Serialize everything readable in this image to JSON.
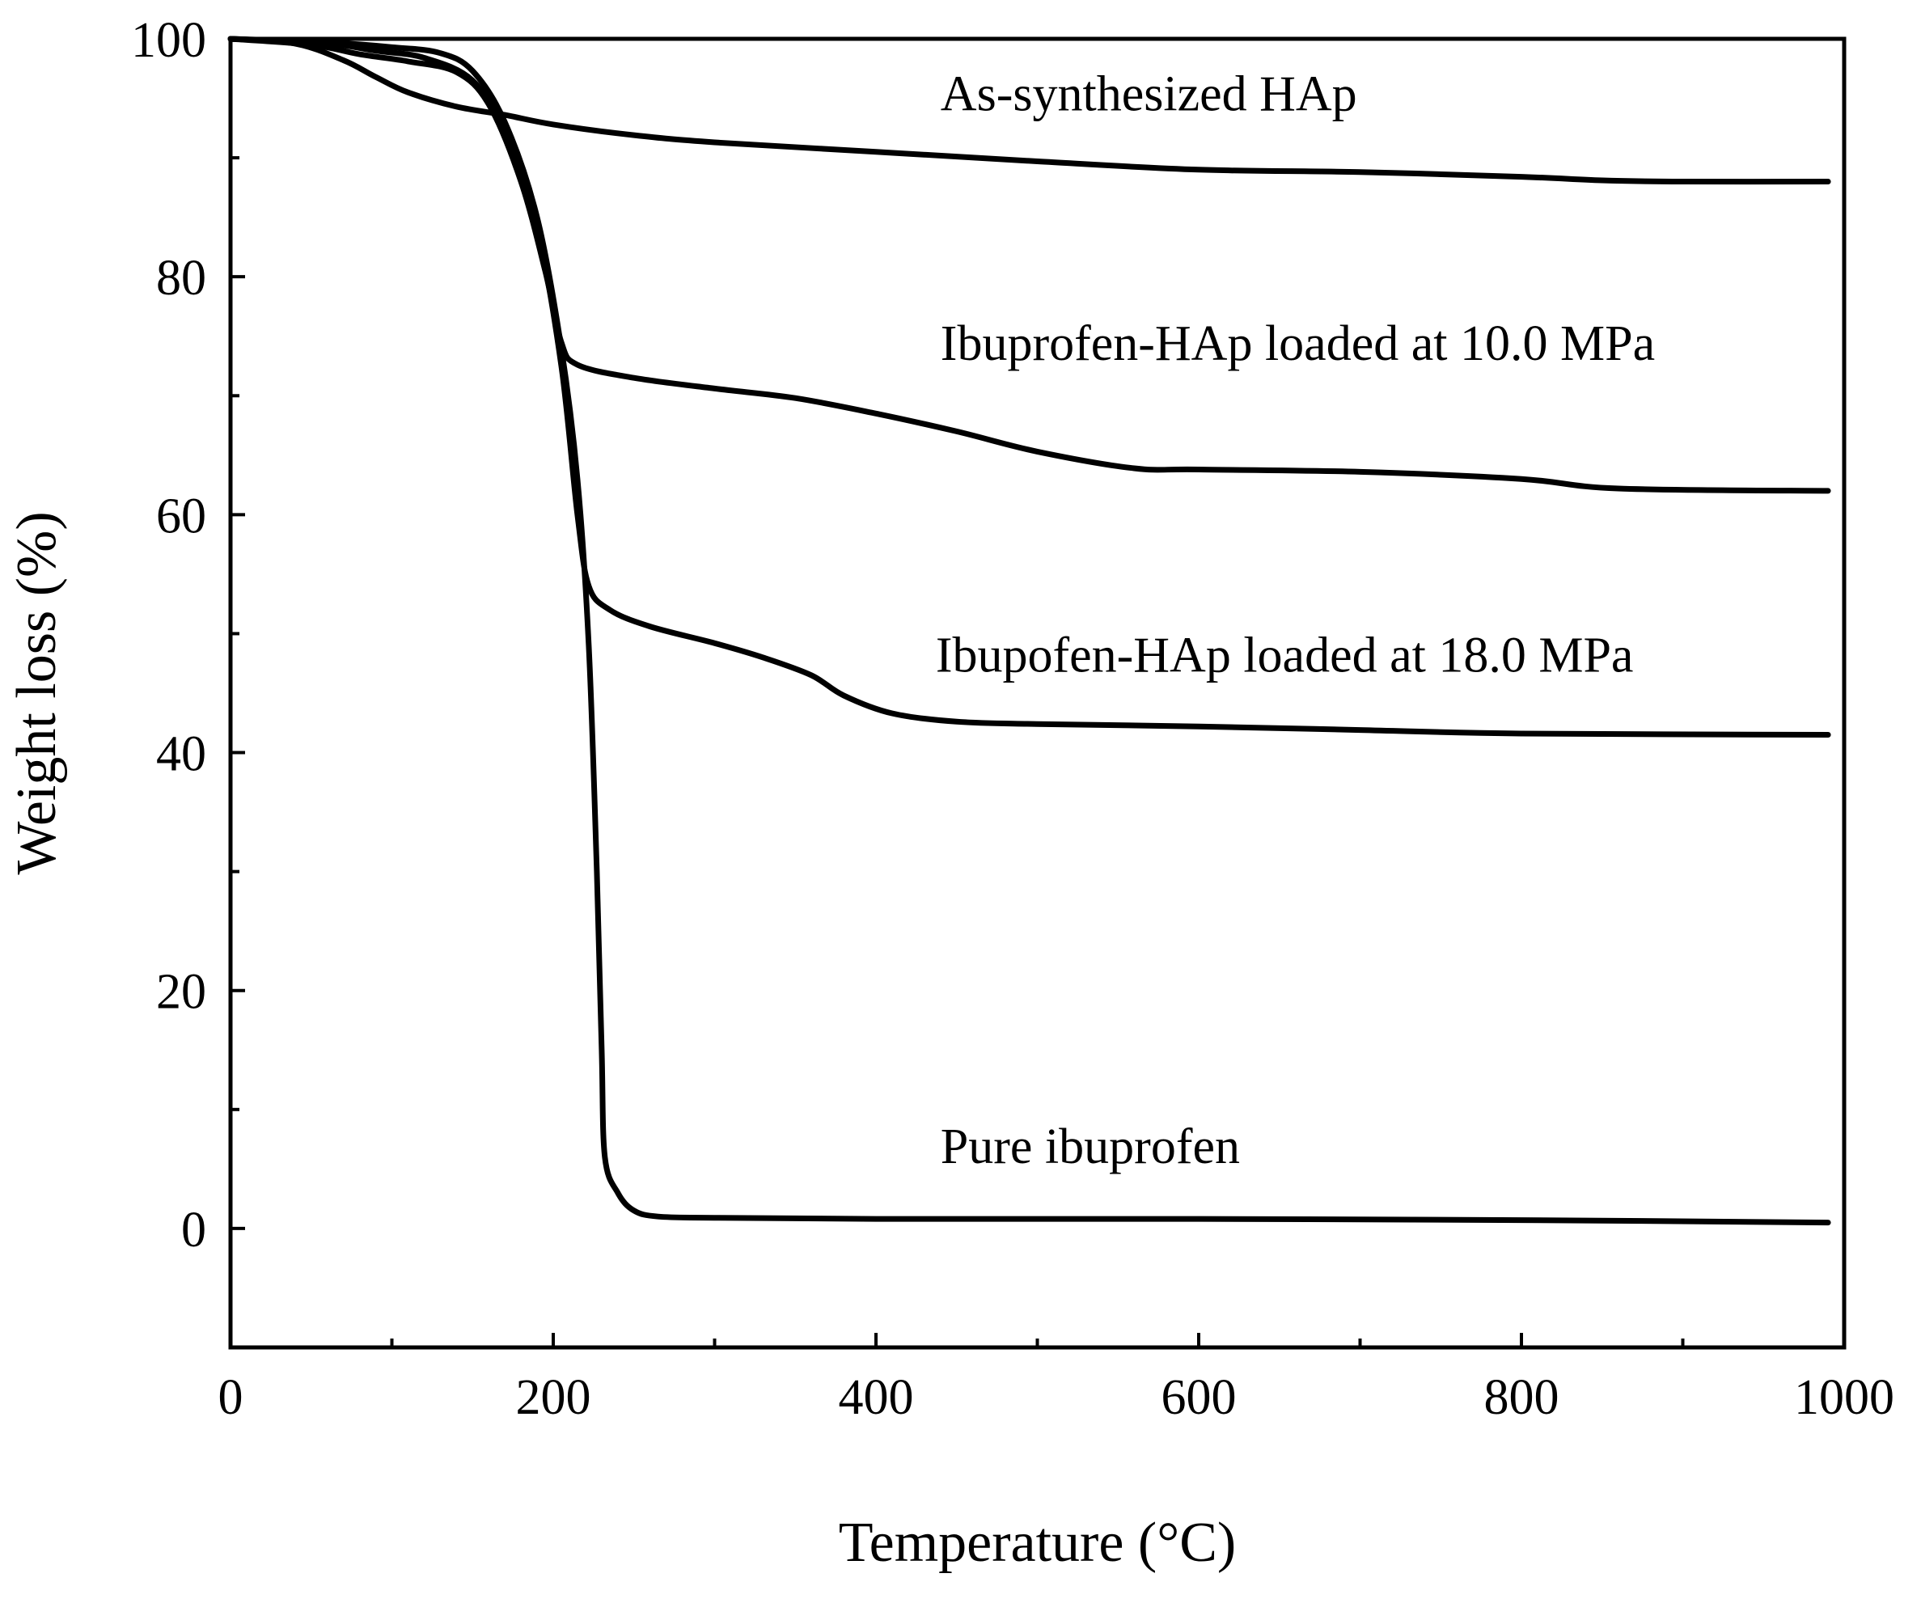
{
  "chart_data": {
    "type": "line",
    "xlabel": "Temperature (°C)",
    "ylabel": "Weight loss (%)",
    "xlim": [
      0,
      1000
    ],
    "ylim": [
      -10,
      100
    ],
    "x_ticks": [
      0,
      200,
      400,
      600,
      800,
      1000
    ],
    "y_ticks": [
      0,
      20,
      40,
      60,
      80,
      100
    ],
    "x_minor_ticks": [
      100,
      300,
      500,
      700,
      900
    ],
    "y_minor_ticks": [
      10,
      30,
      50,
      70,
      90
    ],
    "grid": false,
    "legend": "inline labels",
    "series": [
      {
        "name": "As-synthesized HAp",
        "points": [
          [
            0,
            100
          ],
          [
            40,
            99.6
          ],
          [
            70,
            98.2
          ],
          [
            90,
            96.8
          ],
          [
            110,
            95.5
          ],
          [
            140,
            94.3
          ],
          [
            170,
            93.6
          ],
          [
            200,
            92.8
          ],
          [
            250,
            91.9
          ],
          [
            300,
            91.3
          ],
          [
            400,
            90.5
          ],
          [
            500,
            89.7
          ],
          [
            600,
            89.0
          ],
          [
            700,
            88.8
          ],
          [
            800,
            88.4
          ],
          [
            850,
            88.1
          ],
          [
            900,
            88.0
          ],
          [
            990,
            88.0
          ]
        ]
      },
      {
        "name": "Ibuprofen-HAp loaded at 10.0 MPa",
        "points": [
          [
            0,
            100
          ],
          [
            50,
            99.5
          ],
          [
            80,
            98.7
          ],
          [
            110,
            98.1
          ],
          [
            140,
            97.2
          ],
          [
            160,
            94.5
          ],
          [
            180,
            88.0
          ],
          [
            195,
            80.5
          ],
          [
            205,
            74.5
          ],
          [
            215,
            72.6
          ],
          [
            250,
            71.5
          ],
          [
            300,
            70.6
          ],
          [
            350,
            69.8
          ],
          [
            400,
            68.5
          ],
          [
            450,
            67.0
          ],
          [
            500,
            65.3
          ],
          [
            560,
            63.9
          ],
          [
            600,
            63.8
          ],
          [
            700,
            63.6
          ],
          [
            800,
            63.0
          ],
          [
            860,
            62.2
          ],
          [
            990,
            62.0
          ]
        ]
      },
      {
        "name": "Ibupofen-HAp loaded at 18.0 MPa",
        "points": [
          [
            0,
            100
          ],
          [
            60,
            99.6
          ],
          [
            90,
            99.0
          ],
          [
            120,
            98.4
          ],
          [
            150,
            96.5
          ],
          [
            170,
            92.0
          ],
          [
            190,
            84.0
          ],
          [
            205,
            72.5
          ],
          [
            215,
            60.0
          ],
          [
            222,
            54.0
          ],
          [
            235,
            52.0
          ],
          [
            260,
            50.6
          ],
          [
            300,
            49.2
          ],
          [
            330,
            48.0
          ],
          [
            360,
            46.5
          ],
          [
            380,
            44.8
          ],
          [
            410,
            43.3
          ],
          [
            450,
            42.6
          ],
          [
            500,
            42.4
          ],
          [
            600,
            42.2
          ],
          [
            700,
            41.9
          ],
          [
            800,
            41.6
          ],
          [
            990,
            41.5
          ]
        ]
      },
      {
        "name": "Pure ibuprofen",
        "points": [
          [
            0,
            100
          ],
          [
            60,
            99.7
          ],
          [
            100,
            99.3
          ],
          [
            130,
            98.8
          ],
          [
            150,
            97.3
          ],
          [
            170,
            93.0
          ],
          [
            190,
            85.0
          ],
          [
            205,
            74.0
          ],
          [
            215,
            63.0
          ],
          [
            222,
            49.0
          ],
          [
            227,
            30.0
          ],
          [
            230,
            15.0
          ],
          [
            232,
            6.0
          ],
          [
            240,
            3.0
          ],
          [
            250,
            1.5
          ],
          [
            265,
            1.0
          ],
          [
            300,
            0.9
          ],
          [
            400,
            0.8
          ],
          [
            600,
            0.8
          ],
          [
            800,
            0.7
          ],
          [
            990,
            0.5
          ]
        ]
      }
    ],
    "annotations": [
      {
        "text": "As-synthesized HAp",
        "x": 440,
        "y": 94
      },
      {
        "text": "Ibuprofen-HAp loaded at 10.0 MPa",
        "x": 440,
        "y": 73
      },
      {
        "text": "Ibupofen-HAp loaded at 18.0 MPa",
        "x": 437,
        "y": 46.8
      },
      {
        "text": "Pure ibuprofen",
        "x": 440,
        "y": 5.5
      }
    ]
  }
}
